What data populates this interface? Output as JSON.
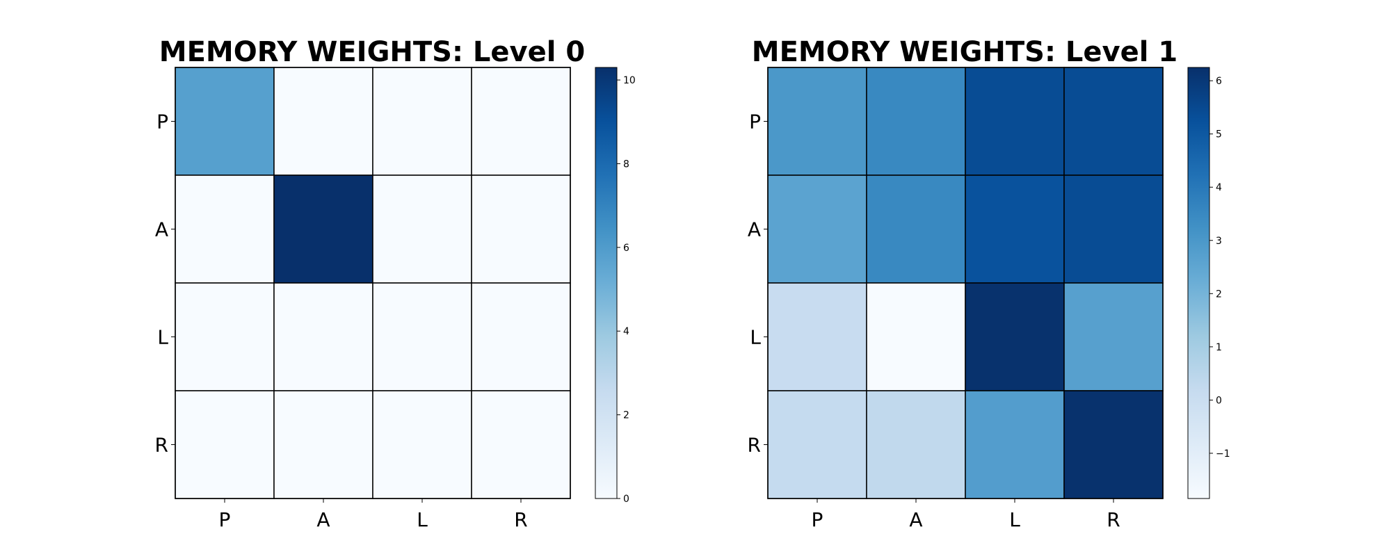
{
  "chart_data": [
    {
      "type": "heatmap",
      "title": "MEMORY WEIGHTS: Level 0",
      "row_labels": [
        "P",
        "A",
        "L",
        "R"
      ],
      "col_labels": [
        "P",
        "A",
        "L",
        "R"
      ],
      "values": [
        [
          5.8,
          0.0,
          0.0,
          0.0
        ],
        [
          0.0,
          10.3,
          0.0,
          0.0
        ],
        [
          0.0,
          0.0,
          0.0,
          0.0
        ],
        [
          0.0,
          0.0,
          0.0,
          0.0
        ]
      ],
      "colormap": "Blues",
      "vmin": 0,
      "vmax": 10.3,
      "colorbar_ticks": [
        "0",
        "2",
        "4",
        "6",
        "8",
        "10"
      ],
      "grid": true
    },
    {
      "type": "heatmap",
      "title": "MEMORY WEIGHTS: Level 1",
      "row_labels": [
        "P",
        "A",
        "L",
        "R"
      ],
      "col_labels": [
        "P",
        "A",
        "L",
        "R"
      ],
      "values": [
        [
          3.0,
          3.5,
          5.4,
          5.4
        ],
        [
          2.6,
          3.5,
          5.2,
          5.4
        ],
        [
          0.1,
          -1.85,
          6.2,
          2.7
        ],
        [
          0.2,
          0.3,
          2.8,
          6.2
        ]
      ],
      "colormap": "Blues",
      "vmin": -1.85,
      "vmax": 6.25,
      "colorbar_ticks": [
        "−1",
        "0",
        "1",
        "2",
        "3",
        "4",
        "5",
        "6"
      ],
      "grid": true
    }
  ]
}
